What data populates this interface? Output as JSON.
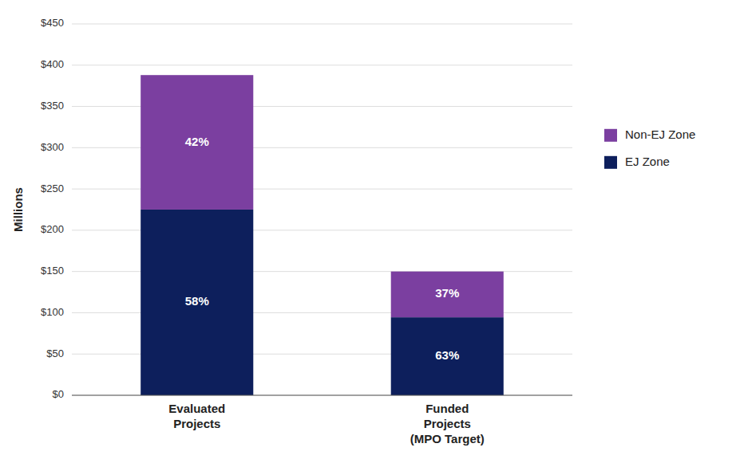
{
  "chart_data": {
    "type": "bar",
    "stacked": true,
    "categories": [
      "Evaluated\nProjects",
      "Funded\nProjects\n(MPO Target)"
    ],
    "series": [
      {
        "name": "EJ Zone",
        "color": "#0d1f5c",
        "values": [
          225.04,
          94.5
        ],
        "share_labels": [
          "58%",
          "63%"
        ]
      },
      {
        "name": "Non-EJ Zone",
        "color": "#7b3fa0",
        "values": [
          162.96,
          55.5
        ],
        "share_labels": [
          "42%",
          "37%"
        ]
      }
    ],
    "ylabel": "Millions",
    "ylim": [
      0,
      450
    ],
    "yticks": [
      {
        "value": 0,
        "label": "$0"
      },
      {
        "value": 50,
        "label": "$50"
      },
      {
        "value": 100,
        "label": "$100"
      },
      {
        "value": 150,
        "label": "$150"
      },
      {
        "value": 200,
        "label": "$200"
      },
      {
        "value": 250,
        "label": "$250"
      },
      {
        "value": 300,
        "label": "$300"
      },
      {
        "value": 350,
        "label": "$350"
      },
      {
        "value": 400,
        "label": "$400"
      },
      {
        "value": 450,
        "label": "$450"
      }
    ],
    "grid": true,
    "legend": "right"
  }
}
